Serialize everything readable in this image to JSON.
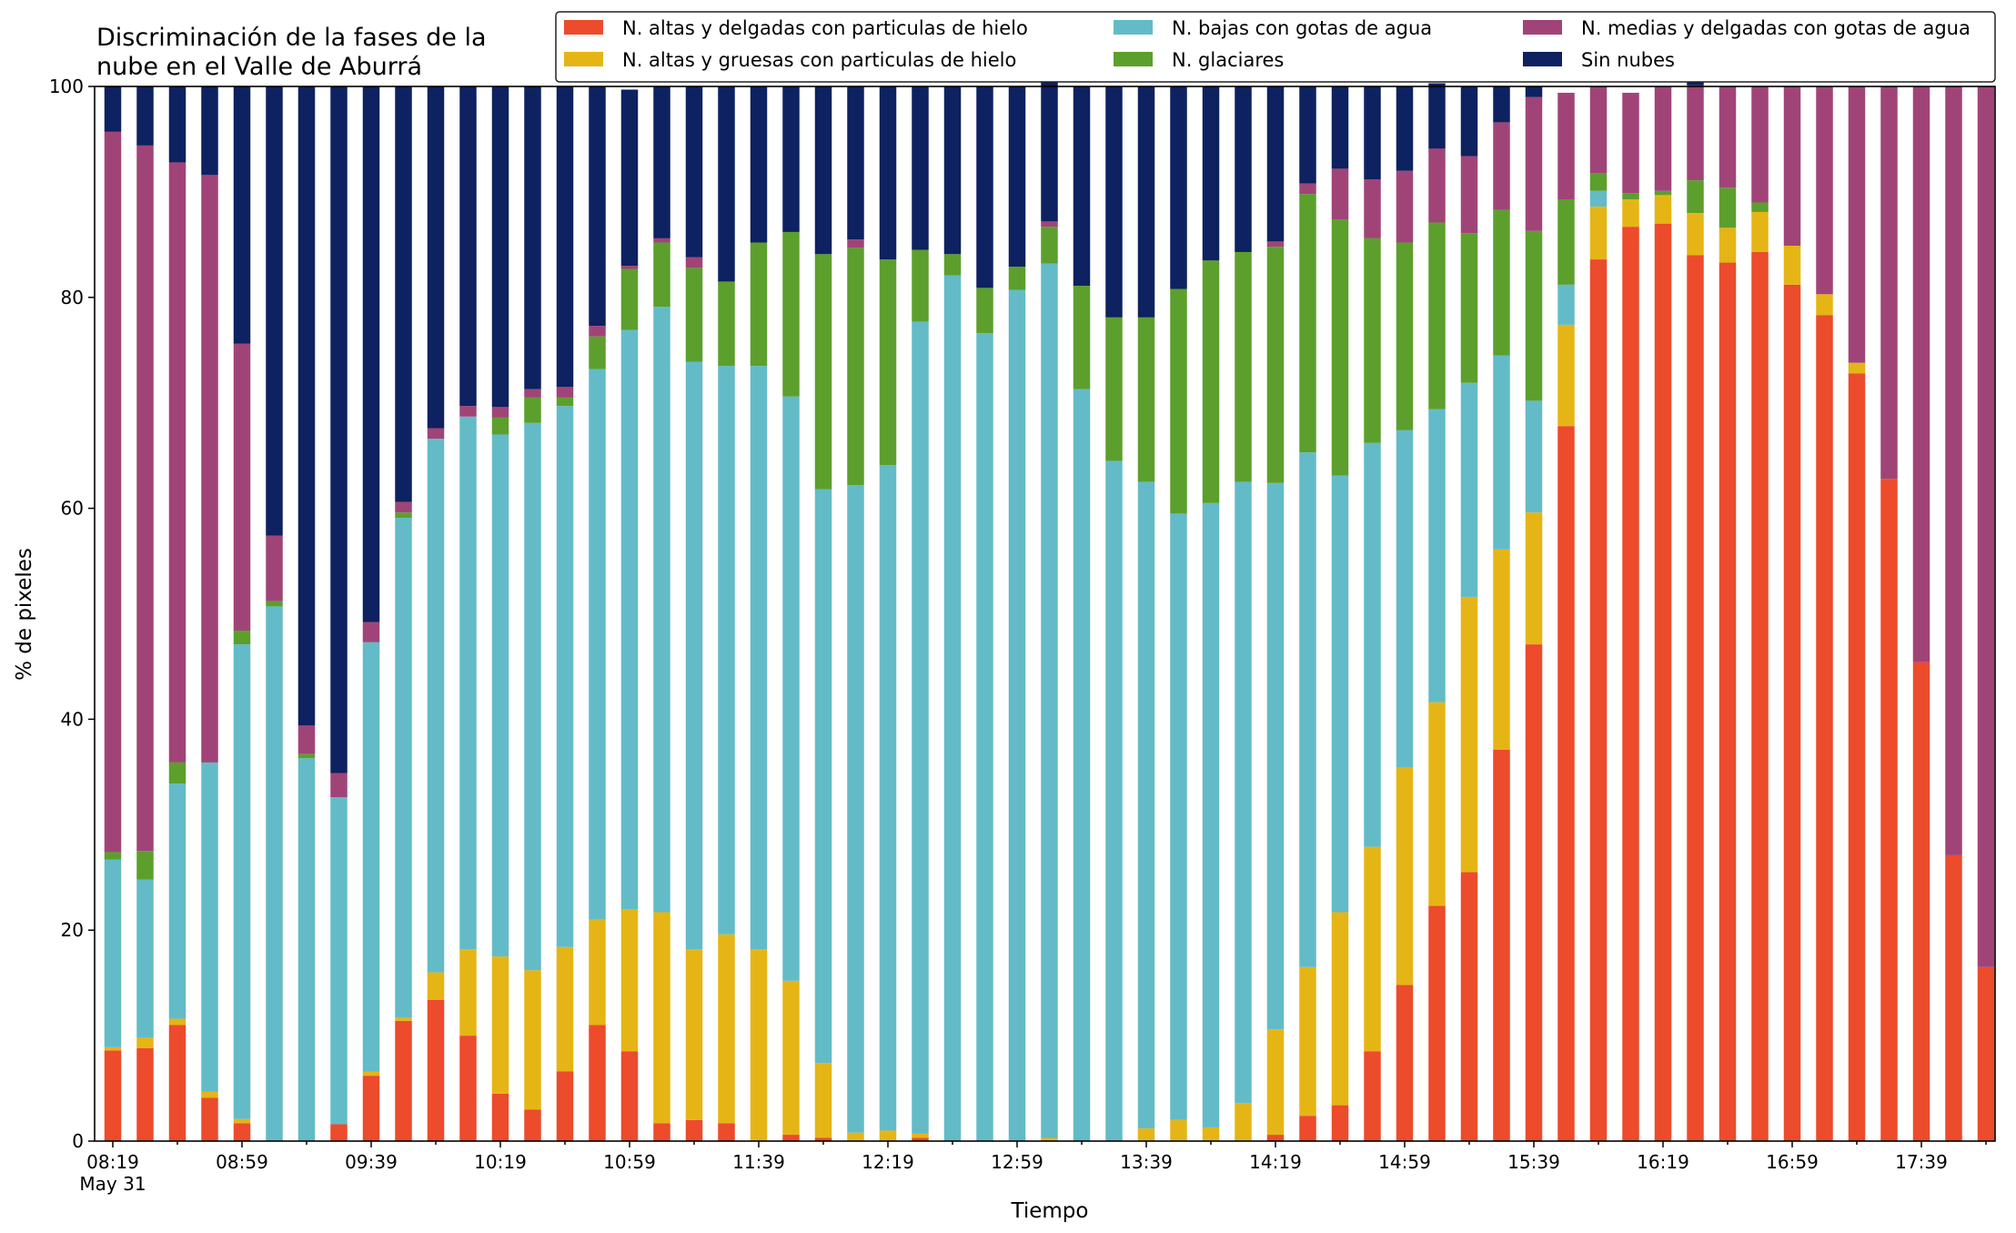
{
  "chart_data": {
    "type": "bar",
    "stacked": true,
    "title": "Discriminación de la fases de la\nnube en el Valle de Aburrá",
    "xlabel": "Tiempo",
    "ylabel": "% de pixeles",
    "ylim": [
      0,
      100
    ],
    "yticks": [
      0,
      20,
      40,
      60,
      80,
      100
    ],
    "xtick_labels": [
      {
        "index": 0,
        "label": "08:19",
        "sublabel": "May 31"
      },
      {
        "index": 4,
        "label": "08:59"
      },
      {
        "index": 8,
        "label": "09:39"
      },
      {
        "index": 12,
        "label": "10:19"
      },
      {
        "index": 16,
        "label": "10:59"
      },
      {
        "index": 20,
        "label": "11:39"
      },
      {
        "index": 24,
        "label": "12:19"
      },
      {
        "index": 28,
        "label": "12:59"
      },
      {
        "index": 32,
        "label": "13:39"
      },
      {
        "index": 36,
        "label": "14:19"
      },
      {
        "index": 40,
        "label": "14:59"
      },
      {
        "index": 44,
        "label": "15:39"
      },
      {
        "index": 48,
        "label": "16:19"
      },
      {
        "index": 52,
        "label": "16:59"
      },
      {
        "index": 56,
        "label": "17:39"
      }
    ],
    "grid": false,
    "legend_position": "top-right",
    "legend_columns": 3,
    "series": [
      {
        "name": "N. altas y delgadas con particulas de hielo",
        "color": "#ec4b2c",
        "values": [
          8.6,
          8.8,
          11.0,
          4.1,
          1.7,
          0,
          0,
          1.6,
          6.2,
          11.4,
          13.4,
          10.0,
          4.5,
          3.0,
          6.6,
          11.0,
          8.5,
          1.7,
          2.0,
          1.7,
          0,
          0.6,
          0.3,
          0,
          0,
          0.3,
          0,
          0,
          0,
          0,
          0,
          0,
          0,
          0,
          0,
          0,
          0.6,
          2.4,
          3.4,
          8.5,
          14.8,
          22.3,
          25.5,
          37.1,
          47.1,
          67.8,
          83.6,
          86.7,
          87.0,
          84.0,
          83.3,
          84.3,
          81.2,
          78.3,
          72.8,
          62.8,
          45.4,
          27.1,
          16.5
        ]
      },
      {
        "name": "N. altas y gruesas con particulas de hielo",
        "color": "#e5b516",
        "values": [
          0.3,
          1.0,
          0.6,
          0.6,
          0.4,
          0,
          0,
          0,
          0.4,
          0.3,
          2.6,
          8.2,
          13.0,
          13.2,
          11.8,
          10.0,
          13.5,
          20.0,
          16.2,
          17.9,
          18.2,
          14.6,
          7.1,
          0.8,
          1.0,
          0.4,
          0,
          0,
          0,
          0.3,
          0,
          0,
          1.2,
          2.0,
          1.3,
          3.6,
          10.0,
          14.1,
          18.3,
          19.4,
          20.6,
          19.3,
          26.1,
          19.0,
          12.5,
          9.6,
          5.0,
          2.6,
          2.7,
          4.0,
          3.3,
          3.8,
          3.7,
          2.0,
          1.0,
          0,
          0,
          0,
          0
        ]
      },
      {
        "name": "N. bajas con gotas de agua",
        "color": "#63bbc8",
        "values": [
          17.8,
          15.0,
          22.3,
          31.2,
          45.0,
          50.7,
          36.3,
          31.0,
          40.7,
          47.4,
          50.6,
          50.5,
          49.5,
          51.9,
          51.3,
          52.2,
          54.9,
          57.4,
          55.7,
          53.9,
          55.3,
          55.4,
          54.4,
          61.4,
          63.1,
          77.0,
          82.1,
          76.6,
          80.7,
          82.9,
          71.3,
          64.5,
          61.3,
          57.5,
          59.2,
          58.9,
          51.8,
          48.8,
          41.4,
          38.3,
          32.0,
          27.8,
          20.3,
          18.4,
          10.6,
          3.8,
          1.5,
          0,
          0,
          0,
          0,
          0,
          0,
          0,
          0,
          0,
          0,
          0,
          0
        ]
      },
      {
        "name": "N. glaciares",
        "color": "#5c9f2d",
        "values": [
          0.7,
          2.7,
          2.0,
          0,
          1.3,
          0.5,
          0.4,
          0,
          0,
          0.5,
          0,
          0,
          1.6,
          2.4,
          0.8,
          3.1,
          5.8,
          6.1,
          8.9,
          8.0,
          11.7,
          15.6,
          22.3,
          22.5,
          19.5,
          6.8,
          2.0,
          4.3,
          2.2,
          3.5,
          9.8,
          13.6,
          15.6,
          21.3,
          23.0,
          21.8,
          22.4,
          24.5,
          24.3,
          19.4,
          17.8,
          17.7,
          14.2,
          13.8,
          16.1,
          8.1,
          1.7,
          0.6,
          0.4,
          3.1,
          3.8,
          0.9,
          0,
          0,
          0,
          0,
          0,
          0,
          0
        ]
      },
      {
        "name": "N. medias y delgadas con gotas de agua",
        "color": "#a04478",
        "values": [
          68.3,
          66.9,
          56.9,
          55.7,
          27.2,
          6.2,
          2.7,
          2.3,
          1.9,
          1.0,
          1.0,
          1.0,
          1.0,
          0.8,
          1.0,
          1.0,
          0.3,
          0.4,
          1.0,
          0,
          0,
          0,
          0,
          0.8,
          0,
          0,
          0,
          0,
          0,
          0.5,
          0,
          0,
          0,
          0,
          0,
          0,
          0.5,
          1.0,
          4.8,
          5.6,
          6.8,
          7.0,
          7.3,
          8.3,
          12.7,
          10.1,
          8.2,
          9.5,
          9.9,
          9.0,
          9.6,
          11.0,
          15.1,
          19.7,
          26.2,
          37.2,
          54.6,
          72.9,
          83.5
        ]
      },
      {
        "name": "Sin nubes",
        "color": "#0e2160",
        "values": [
          4.3,
          5.6,
          7.2,
          8.4,
          24.4,
          42.6,
          60.6,
          65.1,
          50.8,
          39.4,
          32.4,
          30.3,
          30.4,
          28.7,
          28.5,
          22.7,
          16.7,
          14.4,
          16.2,
          18.5,
          14.8,
          13.8,
          15.9,
          14.5,
          16.4,
          15.5,
          15.9,
          19.1,
          17.1,
          13.4,
          18.9,
          21.9,
          21.9,
          19.2,
          16.5,
          15.7,
          14.7,
          9.2,
          7.8,
          8.8,
          8.0,
          6.2,
          6.6,
          3.4,
          1.0,
          0,
          0,
          0,
          0,
          0.3,
          0,
          0,
          0,
          0,
          0,
          0,
          0,
          0,
          0
        ]
      }
    ]
  }
}
